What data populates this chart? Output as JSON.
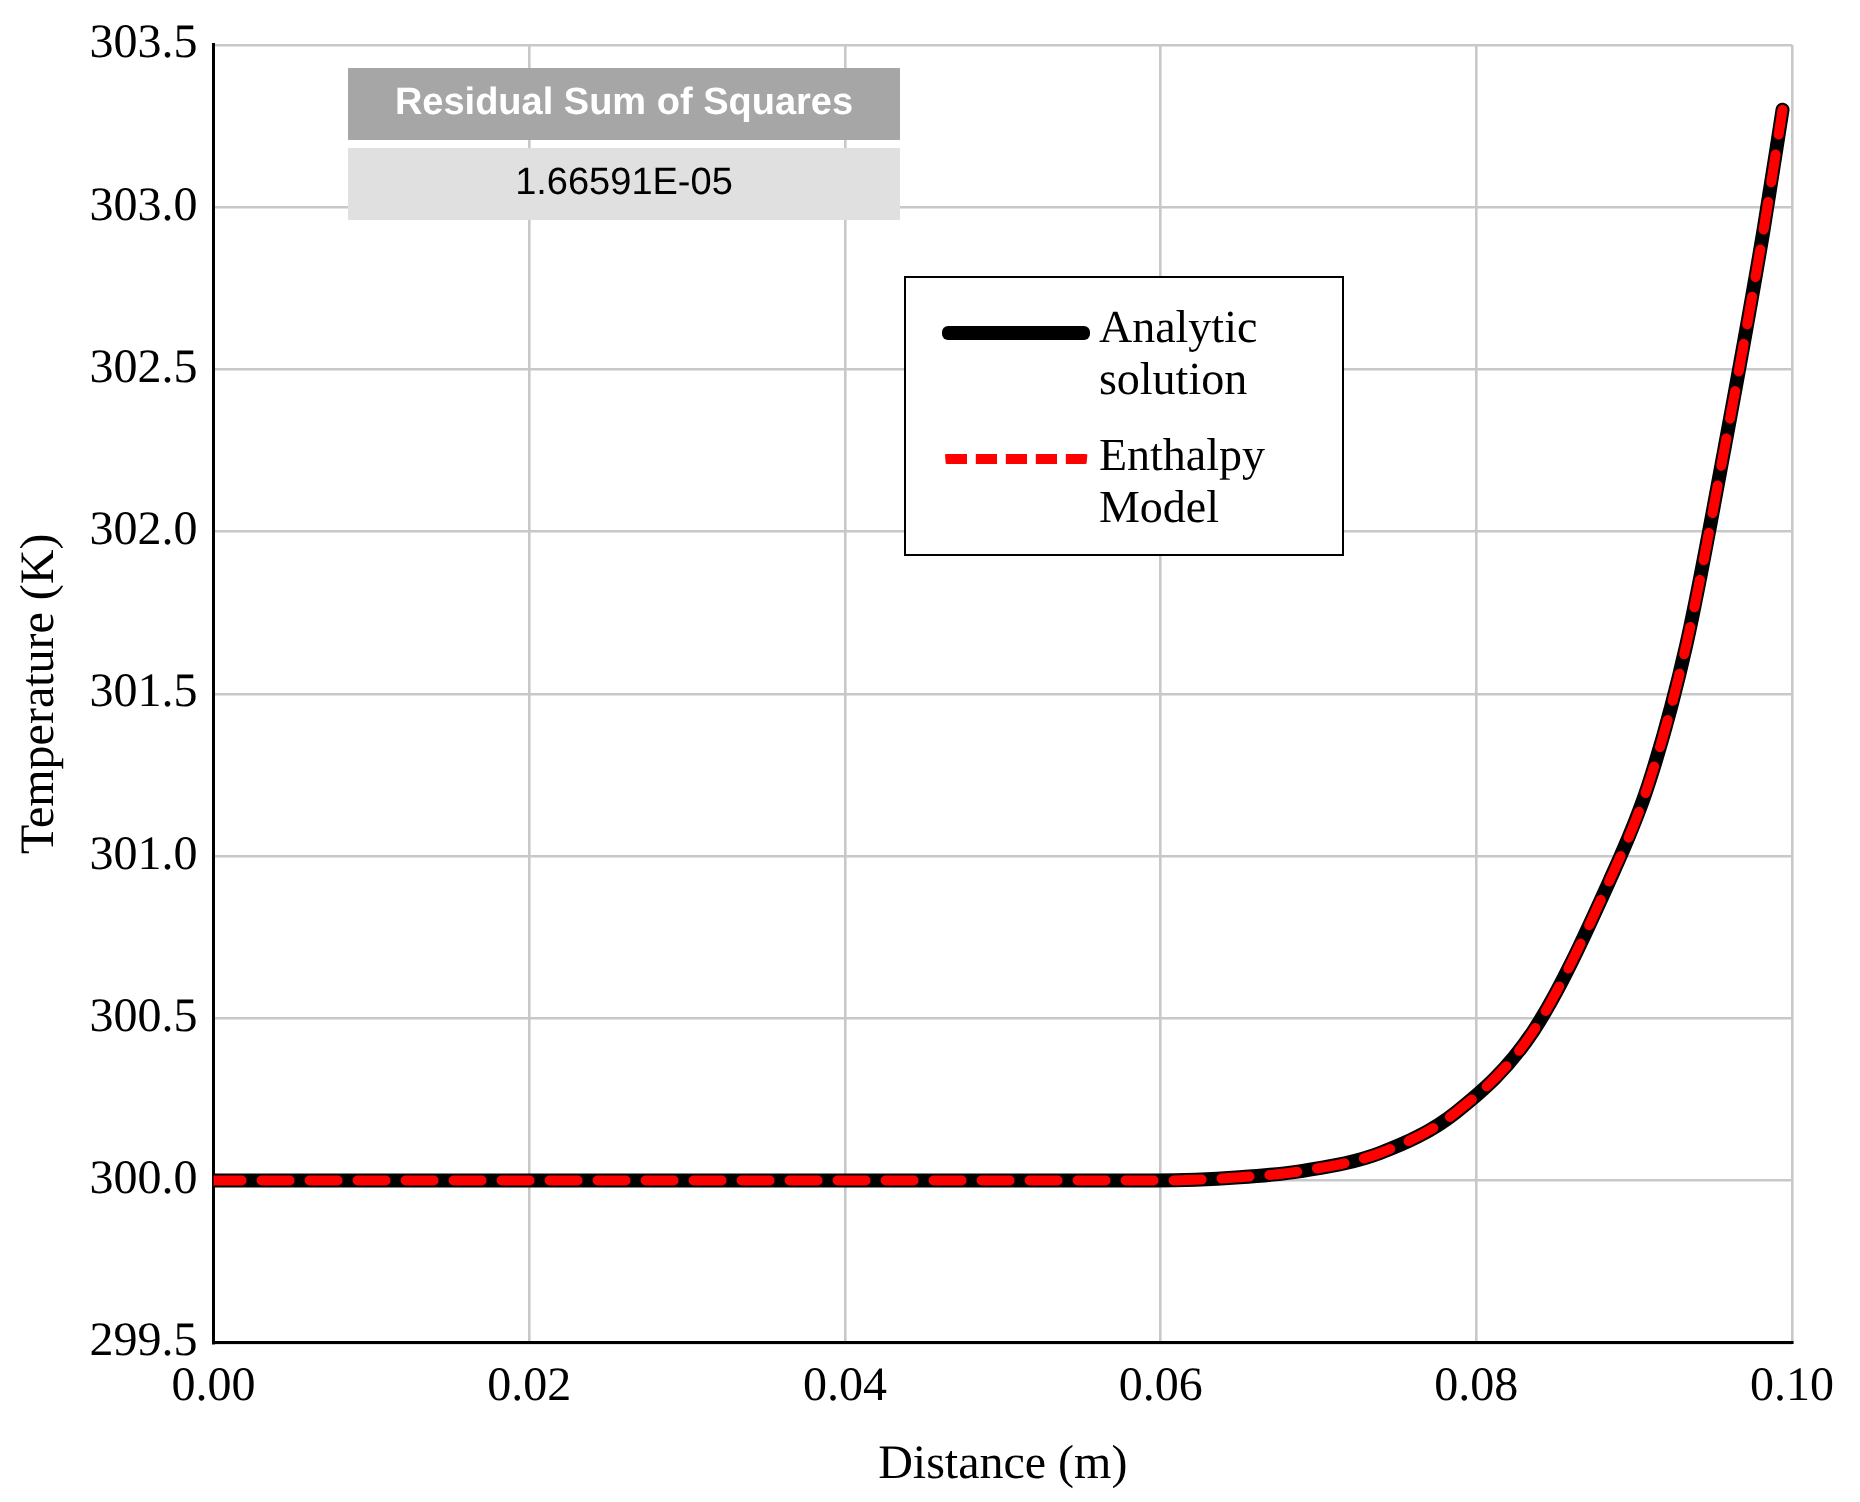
{
  "chart_data": {
    "type": "line",
    "xlabel": "Distance (m)",
    "ylabel": "Temperature (K)",
    "x": [
      0,
      0.01,
      0.02,
      0.03,
      0.04,
      0.05,
      0.0597,
      0.065,
      0.069,
      0.0739,
      0.0787,
      0.0836,
      0.0884,
      0.0909,
      0.0933,
      0.0957,
      0.0982,
      0.0994
    ],
    "series": [
      {
        "name": "Analytic solution",
        "color": "#000000",
        "line_style": "solid",
        "values": [
          300,
          300,
          300,
          300,
          300,
          300,
          300,
          300.01,
          300.03,
          300.085,
          300.21,
          300.46,
          300.92,
          301.22,
          301.65,
          302.25,
          302.93,
          303.3
        ]
      },
      {
        "name": "Enthalpy Model",
        "color": "#ff0000",
        "line_style": "dashed",
        "values": [
          300,
          300,
          300,
          300,
          300,
          300,
          300,
          300.01,
          300.03,
          300.085,
          300.21,
          300.46,
          300.92,
          301.22,
          301.65,
          302.25,
          302.93,
          303.3
        ]
      }
    ],
    "xlim": [
      0,
      0.1
    ],
    "xticks": [
      {
        "value": 0,
        "label": "0.00"
      },
      {
        "value": 0.02,
        "label": "0.02"
      },
      {
        "value": 0.04,
        "label": "0.04"
      },
      {
        "value": 0.06,
        "label": "0.06"
      },
      {
        "value": 0.08,
        "label": "0.08"
      },
      {
        "value": 0.1,
        "label": "0.10"
      }
    ],
    "ylim": [
      299.5,
      303.5
    ],
    "yticks": [
      299.5,
      {
        "value": 300,
        "label": "300.0"
      },
      300.5,
      {
        "value": 301,
        "label": "301.0"
      },
      301.5,
      {
        "value": 302,
        "label": "302.0"
      },
      302.5,
      {
        "value": 303,
        "label": "303.0"
      },
      303.5
    ],
    "grid": true,
    "legend": "top right",
    "marker": "none",
    "annotations": [
      "Residual Sum of Squares",
      "1.66591E-05"
    ]
  }
}
